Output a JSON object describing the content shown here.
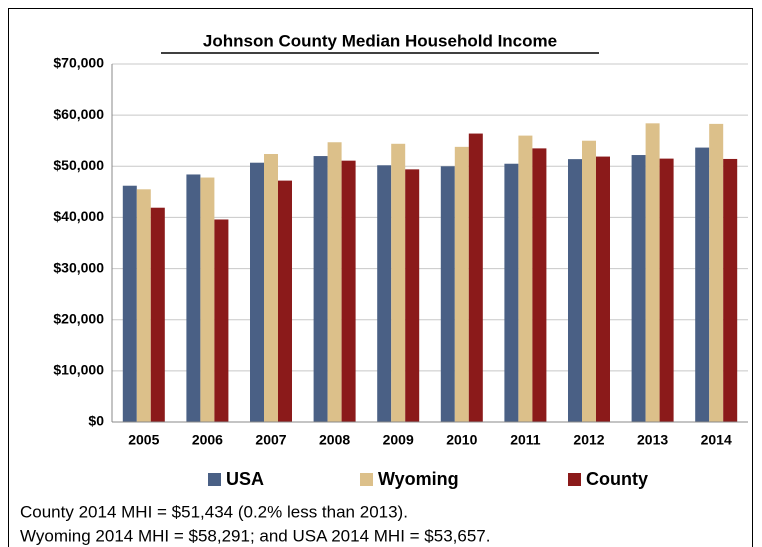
{
  "chart_data": {
    "type": "bar",
    "title": "Johnson County Median Household Income",
    "categories": [
      "2005",
      "2006",
      "2007",
      "2008",
      "2009",
      "2010",
      "2011",
      "2012",
      "2013",
      "2014"
    ],
    "series": [
      {
        "name": "USA",
        "color": "#4a6085",
        "values": [
          46200,
          48400,
          50700,
          52000,
          50200,
          50000,
          50500,
          51400,
          52200,
          53657
        ]
      },
      {
        "name": "Wyoming",
        "color": "#dcc08a",
        "values": [
          45500,
          47800,
          52400,
          54700,
          54400,
          53800,
          56000,
          55000,
          58400,
          58291
        ]
      },
      {
        "name": "County",
        "color": "#8b1a1a",
        "values": [
          41900,
          39600,
          47200,
          51100,
          49400,
          56400,
          53500,
          51900,
          51500,
          51434
        ]
      }
    ],
    "ylim": [
      0,
      70000
    ],
    "yticks": [
      {
        "value": 0,
        "label": "$0"
      },
      {
        "value": 10000,
        "label": "$10,000"
      },
      {
        "value": 20000,
        "label": "$20,000"
      },
      {
        "value": 30000,
        "label": "$30,000"
      },
      {
        "value": 40000,
        "label": "$40,000"
      },
      {
        "value": 50000,
        "label": "$50,000"
      },
      {
        "value": 60000,
        "label": "$60,000"
      },
      {
        "value": 70000,
        "label": "$70,000"
      }
    ],
    "grid": true,
    "legend": "bottom",
    "notes": [
      "County 2014 MHI = $51,434 (0.2% less than 2013).",
      "Wyoming 2014 MHI = $58,291; and USA 2014 MHI = $53,657."
    ]
  }
}
